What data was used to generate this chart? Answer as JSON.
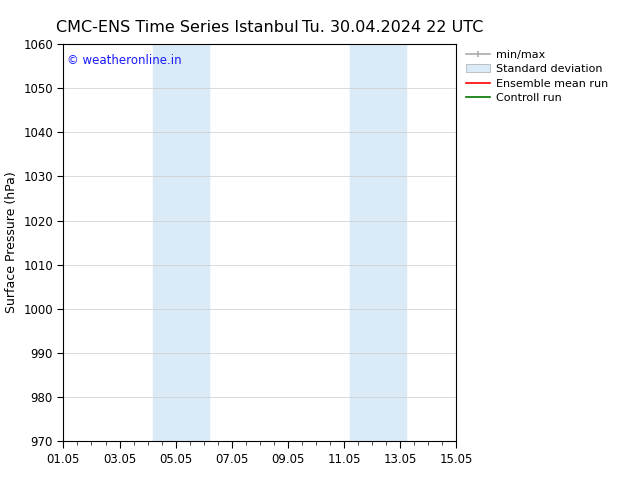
{
  "title_left": "CMC-ENS Time Series Istanbul",
  "title_right": "Tu. 30.04.2024 22 UTC",
  "ylabel": "Surface Pressure (hPa)",
  "xlabel_ticks": [
    "01.05",
    "03.05",
    "05.05",
    "07.05",
    "09.05",
    "11.05",
    "13.05",
    "15.05"
  ],
  "xlim": [
    0,
    14
  ],
  "ylim": [
    970,
    1060
  ],
  "yticks": [
    970,
    980,
    990,
    1000,
    1010,
    1020,
    1030,
    1040,
    1050,
    1060
  ],
  "xtick_positions": [
    0,
    2,
    4,
    6,
    8,
    10,
    12,
    14
  ],
  "shaded_bands": [
    {
      "x_start": 3.2,
      "x_end": 5.2,
      "color": "#daeaf7"
    },
    {
      "x_start": 10.2,
      "x_end": 12.2,
      "color": "#daeaf7"
    }
  ],
  "watermark_text": "© weatheronline.in",
  "watermark_color": "#1a1aff",
  "watermark_fontsize": 8.5,
  "bg_color": "#ffffff",
  "plot_bg_color": "#ffffff",
  "legend_items": [
    {
      "label": "min/max",
      "color": "#aaaaaa",
      "lw": 1.2
    },
    {
      "label": "Standard deviation",
      "color": "#daeaf7",
      "lw": 8
    },
    {
      "label": "Ensemble mean run",
      "color": "#ff0000",
      "lw": 1.2
    },
    {
      "label": "Controll run",
      "color": "#007700",
      "lw": 1.2
    }
  ],
  "title_fontsize": 11.5,
  "axis_label_fontsize": 9,
  "tick_fontsize": 8.5,
  "legend_fontsize": 8,
  "grid_color": "#cccccc",
  "grid_lw": 0.5,
  "spine_color": "#000000"
}
